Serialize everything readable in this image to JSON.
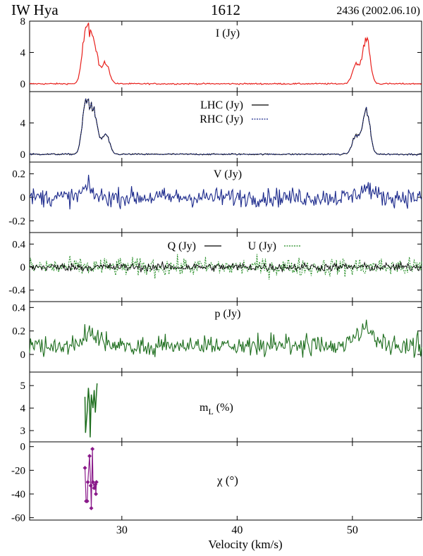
{
  "header": {
    "source": "IW Hya",
    "line": "1612",
    "epoch": "2436 (2002.06.10)"
  },
  "xaxis": {
    "label": "Velocity (km/s)",
    "range": [
      22,
      56
    ],
    "ticks": [
      30,
      40,
      50
    ],
    "tick_labels": [
      "30",
      "40",
      "50"
    ]
  },
  "colors": {
    "I": "#e8201c",
    "LHC": "#000000",
    "RHC": "#1c2a8c",
    "V": "#1c2a8c",
    "Q": "#000000",
    "U": "#1e8a1e",
    "p": "#1e6e1e",
    "mL": "#1e6e1e",
    "chi": "#8a1a8a"
  },
  "chart_data": [
    {
      "id": "I",
      "type": "line",
      "title": "I (Jy)",
      "ylim": [
        -1,
        8
      ],
      "yticks": [
        0,
        4,
        8
      ],
      "ytick_labels": [
        "0",
        "4",
        "8"
      ],
      "series": [
        {
          "name": "I",
          "style": "solid"
        }
      ],
      "profile": {
        "peaks": [
          [
            26.9,
            7.0
          ],
          [
            27.6,
            5.1
          ],
          [
            28.6,
            2.6
          ],
          [
            50.3,
            2.4
          ],
          [
            51.2,
            5.8
          ]
        ]
      }
    },
    {
      "id": "LR",
      "type": "line",
      "title": "",
      "ylim": [
        -1,
        8
      ],
      "yticks": [
        0,
        4
      ],
      "ytick_labels": [
        "0",
        "4"
      ],
      "series": [
        {
          "name": "LHC",
          "label": "LHC (Jy)",
          "style": "solid"
        },
        {
          "name": "RHC",
          "label": "RHC (Jy)",
          "style": "dotted"
        }
      ],
      "profile": {
        "peaks": [
          [
            26.9,
            6.6
          ],
          [
            27.6,
            4.9
          ],
          [
            28.6,
            2.5
          ],
          [
            50.3,
            2.3
          ],
          [
            51.2,
            5.6
          ]
        ]
      }
    },
    {
      "id": "V",
      "type": "line",
      "title": "V (Jy)",
      "ylim": [
        -0.3,
        0.3
      ],
      "yticks": [
        -0.2,
        0,
        0.2
      ],
      "ytick_labels": [
        "-0.2",
        "0",
        "0.2"
      ],
      "series": [
        {
          "name": "V",
          "style": "solid"
        }
      ],
      "noise": 0.055
    },
    {
      "id": "QU",
      "type": "line",
      "title": "",
      "ylim": [
        -0.6,
        0.6
      ],
      "yticks": [
        -0.4,
        0,
        0.4
      ],
      "ytick_labels": [
        "-0.4",
        "0",
        "0.4"
      ],
      "series": [
        {
          "name": "Q",
          "label": "Q (Jy)",
          "style": "solid"
        },
        {
          "name": "U",
          "label": "U (Jy)",
          "style": "dotted"
        }
      ],
      "noise": 0.09
    },
    {
      "id": "p",
      "type": "line",
      "title": "p (Jy)",
      "ylim": [
        -0.15,
        0.45
      ],
      "yticks": [
        0,
        0.2,
        0.4
      ],
      "ytick_labels": [
        "0",
        "0.2",
        "0.4"
      ],
      "series": [
        {
          "name": "p",
          "style": "solid"
        }
      ]
    },
    {
      "id": "mL",
      "type": "line",
      "title": "m",
      "subscript": "L",
      "suffix": " (%)",
      "ylim": [
        2.5,
        5.6
      ],
      "yticks": [
        3,
        4,
        5
      ],
      "ytick_labels": [
        "3",
        "4",
        "5"
      ],
      "series": [
        {
          "name": "mL",
          "style": "solid"
        }
      ],
      "points": [
        [
          26.8,
          4.5
        ],
        [
          26.85,
          2.9
        ],
        [
          27.0,
          3.9
        ],
        [
          27.1,
          4.9
        ],
        [
          27.2,
          4.2
        ],
        [
          27.25,
          2.7
        ],
        [
          27.35,
          4.6
        ],
        [
          27.5,
          4.0
        ],
        [
          27.6,
          4.8
        ],
        [
          27.7,
          3.8
        ],
        [
          27.85,
          5.1
        ]
      ]
    },
    {
      "id": "chi",
      "type": "scatter",
      "title": "χ (°)",
      "ylim": [
        -62,
        4
      ],
      "yticks": [
        -60,
        -40,
        -20,
        0
      ],
      "ytick_labels": [
        "-60",
        "-40",
        "-20",
        "0"
      ],
      "series": [
        {
          "name": "chi",
          "style": "solid",
          "marker": "diamond"
        }
      ],
      "points": [
        [
          26.8,
          -18
        ],
        [
          26.9,
          -46
        ],
        [
          27.0,
          -46
        ],
        [
          27.05,
          -30
        ],
        [
          27.2,
          -8
        ],
        [
          27.3,
          -33
        ],
        [
          27.35,
          -52
        ],
        [
          27.45,
          -2
        ],
        [
          27.5,
          -30
        ],
        [
          27.6,
          -35
        ],
        [
          27.7,
          -32
        ],
        [
          27.75,
          -40
        ],
        [
          27.8,
          -30
        ]
      ]
    }
  ]
}
